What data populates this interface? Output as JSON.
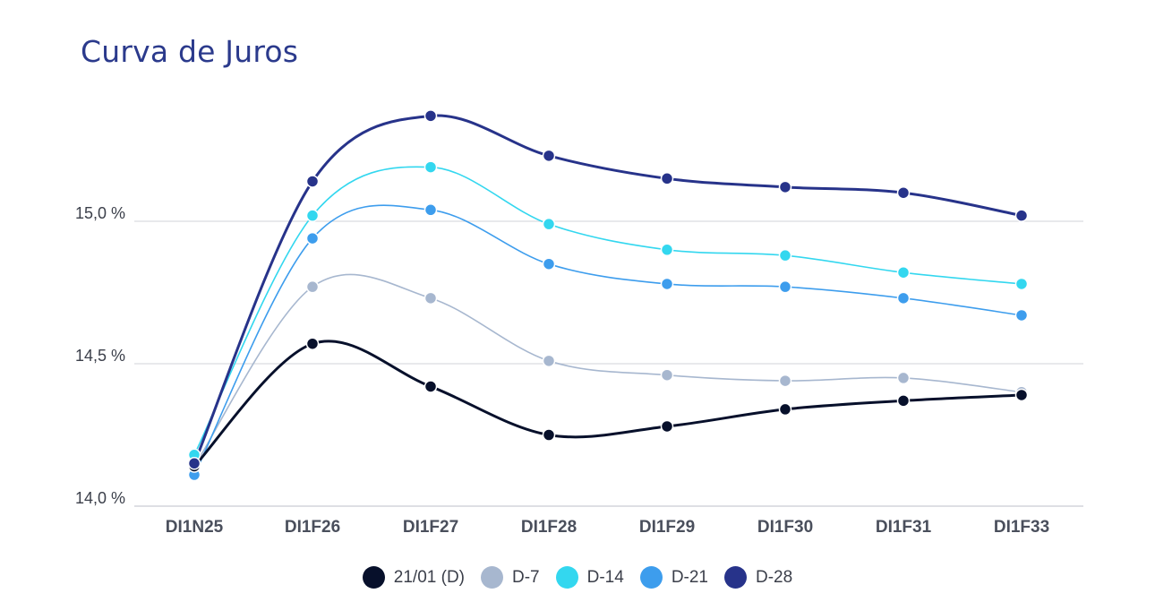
{
  "title": "Curva de Juros",
  "chart_data": {
    "type": "line",
    "title": "Curva de Juros",
    "xlabel": "",
    "ylabel": "",
    "categories": [
      "DI1N25",
      "DI1F26",
      "DI1F27",
      "DI1F28",
      "DI1F29",
      "DI1F30",
      "DI1F31",
      "DI1F33"
    ],
    "ylim": [
      14.0,
      15.5
    ],
    "yticks": [
      14.0,
      14.5,
      15.0
    ],
    "ytick_labels": [
      "14,0 %",
      "14,5 %",
      "15,0 %"
    ],
    "grid": "horizontal",
    "legend_position": "bottom",
    "series": [
      {
        "name": "21/01 (D)",
        "color": "#07102b",
        "values": [
          14.14,
          14.57,
          14.42,
          14.25,
          14.28,
          14.34,
          14.37,
          14.39
        ]
      },
      {
        "name": "D-7",
        "color": "#a7b7cf",
        "values": [
          14.14,
          14.77,
          14.73,
          14.51,
          14.46,
          14.44,
          14.45,
          14.4
        ]
      },
      {
        "name": "D-14",
        "color": "#33d7ef",
        "values": [
          14.18,
          15.02,
          15.19,
          14.99,
          14.9,
          14.88,
          14.82,
          14.78
        ]
      },
      {
        "name": "D-21",
        "color": "#3d9ded",
        "values": [
          14.11,
          14.94,
          15.04,
          14.85,
          14.78,
          14.77,
          14.73,
          14.67
        ]
      },
      {
        "name": "D-28",
        "color": "#27338a",
        "values": [
          14.15,
          15.14,
          15.37,
          15.23,
          15.15,
          15.12,
          15.1,
          15.02
        ]
      }
    ]
  }
}
